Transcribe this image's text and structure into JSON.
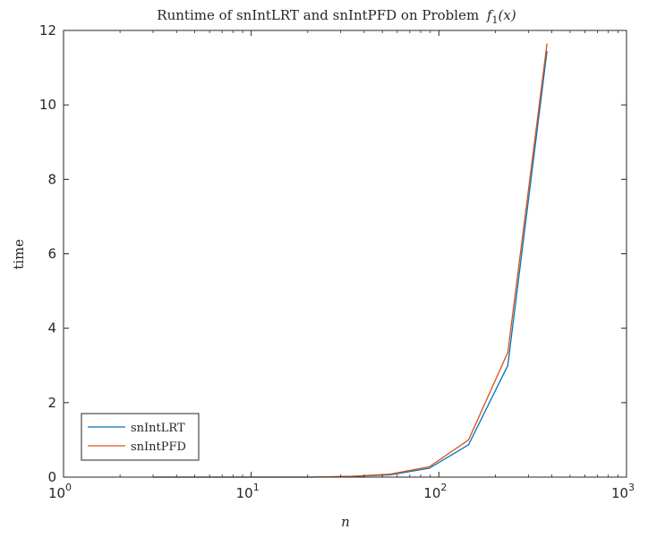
{
  "chart_data": {
    "type": "line",
    "title": "Runtime of snIntLRT and snIntPFD on Problem",
    "title_math": "f",
    "title_math_sub": "1",
    "title_math_arg": "(x)",
    "xlabel": "n",
    "ylabel": "time",
    "x_scale": "log",
    "xlim": [
      1,
      1000
    ],
    "ylim": [
      0,
      12
    ],
    "x_ticks": [
      {
        "base": "10",
        "exp": "0",
        "value": 1
      },
      {
        "base": "10",
        "exp": "1",
        "value": 10
      },
      {
        "base": "10",
        "exp": "2",
        "value": 100
      },
      {
        "base": "10",
        "exp": "3",
        "value": 1000
      }
    ],
    "y_ticks": [
      "0",
      "2",
      "4",
      "6",
      "8",
      "10",
      "12"
    ],
    "grid": false,
    "legend_position": "bottom-left",
    "series": [
      {
        "name": "snIntLRT",
        "color": "#0072BD",
        "x": [
          3,
          5,
          8,
          13,
          21,
          34,
          55,
          89,
          144,
          233,
          377
        ],
        "y": [
          0.0,
          0.0,
          0.0,
          0.0,
          0.0,
          0.02,
          0.06,
          0.24,
          0.87,
          3.0,
          11.45
        ]
      },
      {
        "name": "snIntPFD",
        "color": "#D95319",
        "x": [
          3,
          5,
          8,
          13,
          21,
          34,
          55,
          89,
          144,
          233,
          377
        ],
        "y": [
          0.0,
          0.0,
          0.0,
          0.0,
          0.0,
          0.02,
          0.08,
          0.28,
          1.0,
          3.35,
          11.65
        ]
      }
    ]
  }
}
